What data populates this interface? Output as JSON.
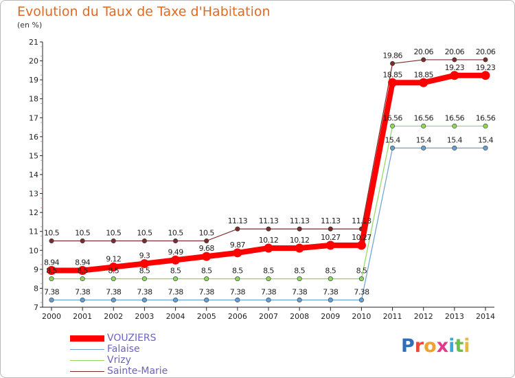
{
  "title": "Evolution du Taux de Taxe d'Habitation",
  "subtitle": "(en %)",
  "logo_text": "Proxiti",
  "chart_data": {
    "type": "line",
    "categories": [
      "2000",
      "2001",
      "2002",
      "2003",
      "2004",
      "2005",
      "2006",
      "2007",
      "2008",
      "2009",
      "2010",
      "2011",
      "2012",
      "2013",
      "2014"
    ],
    "ylim": [
      7,
      21
    ],
    "yticks": [
      7,
      8,
      9,
      10,
      11,
      12,
      13,
      14,
      15,
      16,
      17,
      18,
      19,
      20,
      21
    ],
    "grid": false,
    "legend_position": "bottom-left",
    "series": [
      {
        "name": "VOUZIERS",
        "color": "#ff0000",
        "values": [
          8.94,
          8.94,
          9.12,
          9.3,
          9.49,
          9.68,
          9.87,
          10.12,
          10.12,
          10.27,
          10.27,
          18.85,
          18.85,
          19.23,
          19.23
        ],
        "labels": [
          "8.94",
          "8.94",
          "9.12",
          "9.3",
          "9.49",
          "9.68",
          "9.87",
          "10.12",
          "10.12",
          "10.27",
          "10.27",
          "18.85",
          "18.85",
          "19.23",
          "19.23"
        ]
      },
      {
        "name": "Falaise",
        "color": "#6a9fd0",
        "values": [
          7.38,
          7.38,
          7.38,
          7.38,
          7.38,
          7.38,
          7.38,
          7.38,
          7.38,
          7.38,
          7.38,
          15.4,
          15.4,
          15.4,
          15.4
        ],
        "labels": [
          "7.38",
          "7.38",
          "7.38",
          "7.38",
          "7.38",
          "7.38",
          "7.38",
          "7.38",
          "7.38",
          "7.38",
          "7.38",
          "15.4",
          "15.4",
          "15.4",
          "15.4"
        ]
      },
      {
        "name": "Vrizy",
        "color": "#8fd65a",
        "values": [
          8.5,
          8.5,
          8.5,
          8.5,
          8.5,
          8.5,
          8.5,
          8.5,
          8.5,
          8.5,
          8.5,
          16.56,
          16.56,
          16.56,
          16.56
        ],
        "labels": [
          "8.5",
          "8.5",
          "8.5",
          "8.5",
          "8.5",
          "8.5",
          "8.5",
          "8.5",
          "8.5",
          "8.5",
          "8.5",
          "16.56",
          "16.56",
          "16.56",
          "16.56"
        ]
      },
      {
        "name": "Sainte-Marie",
        "color": "#7b2c2c",
        "values": [
          10.5,
          10.5,
          10.5,
          10.5,
          10.5,
          10.5,
          11.13,
          11.13,
          11.13,
          11.13,
          11.13,
          19.86,
          20.06,
          20.06,
          20.06
        ],
        "labels": [
          "10.5",
          "10.5",
          "10.5",
          "10.5",
          "10.5",
          "10.5",
          "11.13",
          "11.13",
          "11.13",
          "11.13",
          "11.13",
          "19.86",
          "20.06",
          "20.06",
          "20.06"
        ]
      }
    ]
  }
}
